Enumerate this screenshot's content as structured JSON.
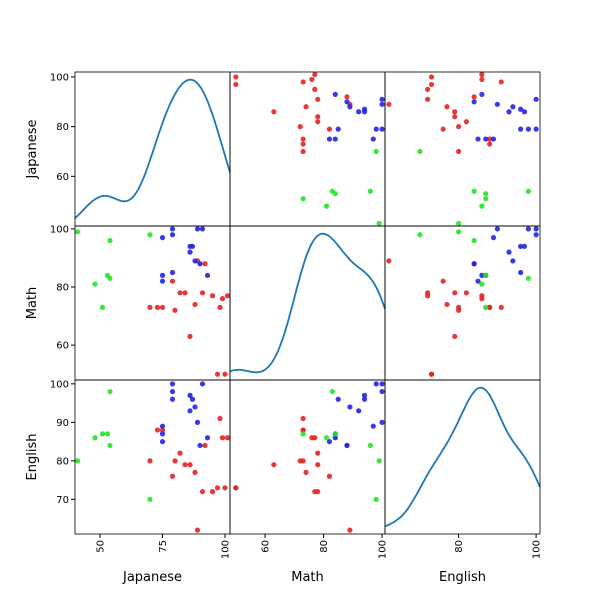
{
  "chart_data": {
    "type": "scatter_matrix",
    "variables": [
      "Japanese",
      "Math",
      "English"
    ],
    "lims": {
      "Japanese": [
        40,
        102
      ],
      "Math": [
        48,
        101
      ],
      "English": [
        61,
        101
      ]
    },
    "xticks": {
      "Japanese": [
        50,
        75,
        100
      ],
      "Math": [
        60,
        80,
        100
      ],
      "English": [
        80,
        100
      ]
    },
    "yticks": {
      "Japanese": [
        60,
        80,
        100
      ],
      "Math": [
        60,
        80,
        100
      ],
      "English": [
        70,
        80,
        90,
        100
      ]
    },
    "diagonal_color": "#1f77b4",
    "series": [
      {
        "color": "#e32424",
        "Japanese": [
          70,
          73,
          75,
          79,
          80,
          82,
          84,
          86,
          88,
          89,
          91,
          92,
          95,
          97,
          98,
          99,
          100,
          101
        ],
        "Math": [
          73,
          73,
          73,
          82,
          72,
          78,
          78,
          63,
          74,
          89,
          78,
          88,
          77,
          50,
          73,
          76,
          50,
          77
        ],
        "English": [
          80,
          88,
          88,
          76,
          80,
          82,
          79,
          79,
          77,
          62,
          72,
          84,
          72,
          73,
          91,
          86,
          73,
          86
        ]
      },
      {
        "color": "#2424e3",
        "Japanese": [
          75,
          75,
          75,
          79,
          79,
          79,
          86,
          86,
          87,
          88,
          89,
          90,
          91,
          93
        ],
        "Math": [
          97,
          84,
          82,
          100,
          98,
          85,
          94,
          92,
          94,
          89,
          100,
          88,
          100,
          84
        ],
        "English": [
          89,
          87,
          85,
          98,
          100,
          96,
          97,
          93,
          96,
          94,
          90,
          84,
          100,
          86
        ]
      },
      {
        "color": "#24e324",
        "Japanese": [
          41,
          48,
          51,
          53,
          54,
          54,
          70
        ],
        "Math": [
          99,
          81,
          73,
          84,
          83,
          96,
          98
        ],
        "English": [
          80,
          86,
          87,
          87,
          98,
          84,
          70
        ]
      }
    ]
  }
}
